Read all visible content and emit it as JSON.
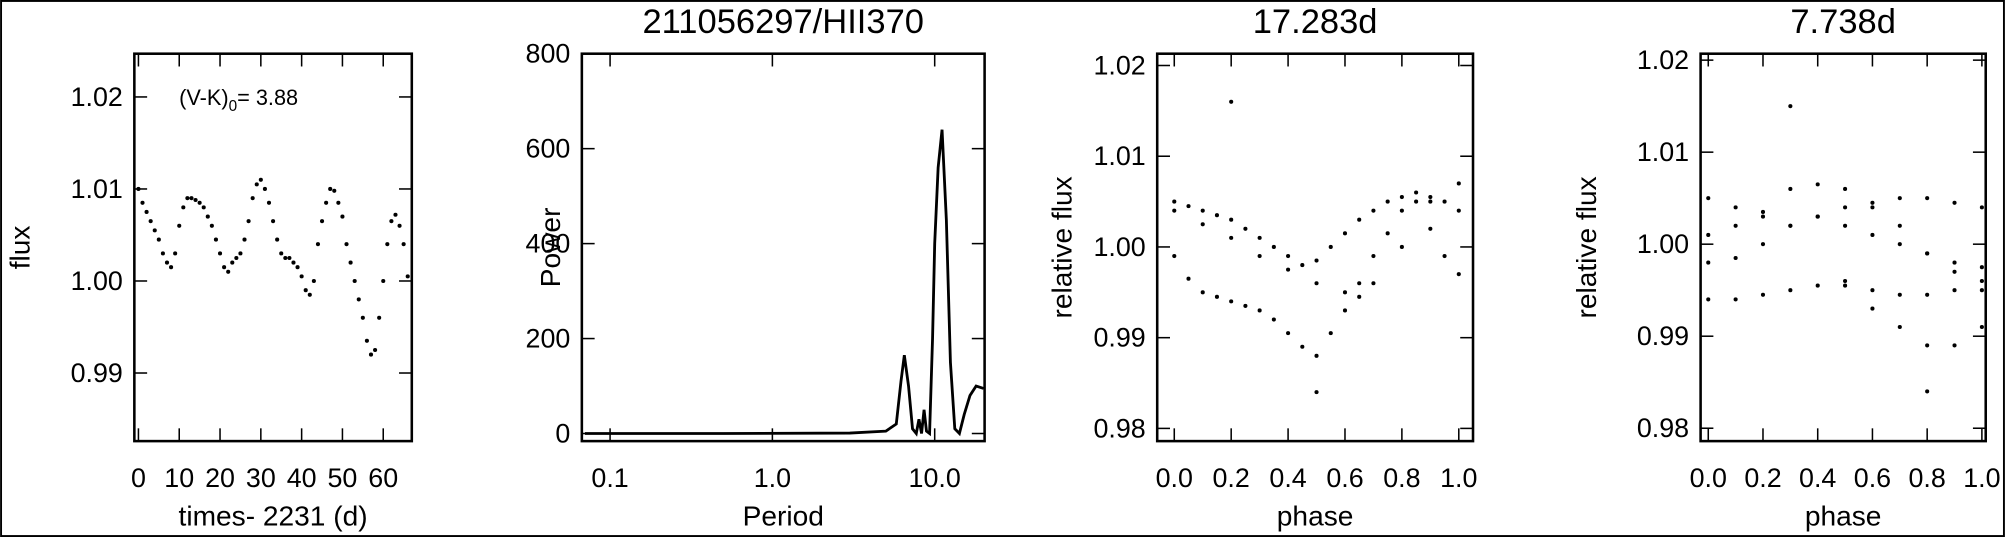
{
  "chart_data": [
    {
      "type": "scatter",
      "xlabel": "times- 2231 (d)",
      "ylabel": "flux",
      "annotation": {
        "text": "(V-K)",
        "sub": "0",
        "rest": "= 3.88"
      },
      "color": "#000000",
      "xlog": false,
      "xlim": [
        -1,
        67
      ],
      "ylim": [
        0.9826,
        1.0247
      ],
      "xticks": [
        0,
        10,
        20,
        30,
        40,
        50,
        60
      ],
      "yticks": [
        0.99,
        {
          "value": 1,
          "label": "1.00"
        },
        1.01,
        1.02
      ],
      "x": [
        0,
        1,
        2,
        3,
        4,
        5,
        6,
        7,
        8,
        9,
        10,
        11,
        12,
        13,
        14,
        15,
        16,
        17,
        18,
        19,
        20,
        21,
        22,
        23,
        24,
        25,
        26,
        27,
        28,
        29,
        30,
        31,
        32,
        33,
        34,
        35,
        36,
        37,
        38,
        39,
        40,
        41,
        42,
        43,
        44,
        45,
        46,
        47,
        48,
        49,
        50,
        51,
        52,
        53,
        54,
        55,
        56,
        57,
        58,
        59,
        60,
        61,
        62,
        63,
        64,
        65,
        66
      ],
      "y": [
        1.01,
        1.0085,
        1.0075,
        1.0065,
        1.0055,
        1.0045,
        1.003,
        1.002,
        1.0015,
        1.003,
        1.006,
        1.008,
        1.009,
        1.009,
        1.0088,
        1.0085,
        1.008,
        1.007,
        1.006,
        1.0045,
        1.003,
        1.0015,
        1.001,
        1.002,
        1.0025,
        1.003,
        1.0045,
        1.0065,
        1.009,
        1.0105,
        1.011,
        1.01,
        1.0085,
        1.0065,
        1.0045,
        1.003,
        1.0025,
        1.0025,
        1.002,
        1.0015,
        1.0005,
        0.999,
        0.9985,
        1.0,
        1.004,
        1.0065,
        1.0085,
        1.01,
        1.0098,
        1.0085,
        1.007,
        1.004,
        1.002,
        1.0,
        0.998,
        0.996,
        0.9935,
        0.992,
        0.9925,
        0.996,
        1.0,
        1.004,
        1.0065,
        1.0072,
        1.006,
        1.004,
        1.0005
      ]
    },
    {
      "type": "line",
      "title": "211056297/HII370",
      "xlabel": "Period",
      "ylabel": "Power",
      "color": "#000000",
      "xlog": true,
      "xlim": [
        0.067,
        20.3
      ],
      "ylim": [
        -16,
        800
      ],
      "xticks": [
        0.1,
        {
          "value": 1,
          "label": "1.0"
        },
        {
          "value": 10,
          "label": "10.0"
        }
      ],
      "yticks": [
        0,
        200,
        400,
        600,
        800
      ],
      "x": [
        0.07,
        0.5,
        3,
        5,
        5.8,
        6.2,
        6.5,
        6.9,
        7.3,
        7.7,
        8.0,
        8.3,
        8.6,
        8.9,
        9.3,
        9.7,
        10.0,
        10.5,
        11.1,
        11.8,
        12.5,
        13.3,
        14.2,
        15.2,
        16.5,
        18.0,
        20.0
      ],
      "y": [
        0,
        0,
        1,
        5,
        20,
        110,
        165,
        100,
        10,
        0,
        30,
        0,
        50,
        5,
        0,
        200,
        400,
        560,
        640,
        450,
        150,
        10,
        0,
        40,
        80,
        100,
        95
      ]
    },
    {
      "type": "scatter",
      "title": "17.283d",
      "xlabel": "phase",
      "ylabel": "relative flux",
      "color": "#000000",
      "xlog": false,
      "xlim": [
        -0.06,
        1.05
      ],
      "ylim": [
        0.9786,
        1.0213
      ],
      "xticks": [
        {
          "value": 0,
          "label": "0.0"
        },
        0.2,
        0.4,
        0.6,
        0.8,
        {
          "value": 1,
          "label": "1.0"
        }
      ],
      "yticks": [
        0.98,
        0.99,
        {
          "value": 1,
          "label": "1.00"
        },
        1.01,
        1.02
      ],
      "x": [
        0,
        0.05,
        0.1,
        0.15,
        0.2,
        0.25,
        0.3,
        0.35,
        0.4,
        0.45,
        0.5,
        0.55,
        0.6,
        0.65,
        0.7,
        0.75,
        0.8,
        0.85,
        0.9,
        0.95,
        1.0,
        0,
        0.05,
        0.1,
        0.15,
        0.2,
        0.25,
        0.3,
        0.35,
        0.4,
        0.45,
        0.5,
        0.55,
        0.6,
        0.65,
        0.7,
        0.75,
        0.8,
        0.85,
        0.9,
        0.95,
        1.0,
        0,
        0.1,
        0.2,
        0.3,
        0.4,
        0.5,
        0.6,
        0.65,
        0.7,
        0.8,
        0.9,
        1.0,
        0.2,
        0.5
      ],
      "y": [
        1.005,
        1.0045,
        1.004,
        1.0035,
        1.003,
        1.002,
        1.001,
        1.0,
        0.999,
        0.998,
        0.9985,
        1.0,
        1.0015,
        1.003,
        1.004,
        1.005,
        1.0055,
        1.006,
        1.0055,
        1.005,
        1.004,
        0.999,
        0.9965,
        0.995,
        0.9945,
        0.994,
        0.9935,
        0.993,
        0.992,
        0.9905,
        0.989,
        0.988,
        0.9905,
        0.993,
        0.996,
        0.999,
        1.0015,
        1.004,
        1.005,
        1.002,
        0.999,
        0.997,
        1.004,
        1.0025,
        1.001,
        0.999,
        0.9975,
        0.996,
        0.995,
        0.9945,
        0.996,
        1.0,
        1.005,
        1.007,
        1.016,
        0.984
      ]
    },
    {
      "type": "scatter",
      "title": "7.738d",
      "xlabel": "phase",
      "ylabel": "relative flux",
      "color": "#000000",
      "xlog": false,
      "xlim": [
        -0.028,
        1.014
      ],
      "ylim": [
        0.9786,
        1.0207
      ],
      "xticks": [
        {
          "value": 0,
          "label": "0.0"
        },
        0.2,
        0.4,
        0.6,
        0.8,
        {
          "value": 1,
          "label": "1.0"
        }
      ],
      "yticks": [
        0.98,
        0.99,
        {
          "value": 1,
          "label": "1.00"
        },
        1.01,
        1.02
      ],
      "x": [
        0,
        0.1,
        0.2,
        0.3,
        0.4,
        0.5,
        0.6,
        0.7,
        0.8,
        0.9,
        1.0,
        0,
        0.1,
        0.2,
        0.3,
        0.4,
        0.5,
        0.6,
        0.7,
        0.8,
        0.9,
        1.0,
        0,
        0.1,
        0.2,
        0.3,
        0.4,
        0.5,
        0.6,
        0.7,
        0.8,
        0.9,
        1.0,
        0,
        0.1,
        0.2,
        0.3,
        0.4,
        0.5,
        0.6,
        0.7,
        0.8,
        0.9,
        1.0,
        0.5,
        0.6,
        0.7,
        0.8,
        0.9,
        1.0,
        0.3,
        0.8
      ],
      "y": [
        1.005,
        1.004,
        1.003,
        1.002,
        1.003,
        1.004,
        1.0045,
        1.005,
        1.005,
        1.0045,
        1.004,
        0.998,
        0.9985,
        1.0,
        1.002,
        1.003,
        1.002,
        1.001,
        1.0,
        0.999,
        0.998,
        0.9975,
        0.994,
        0.994,
        0.9945,
        0.995,
        0.9955,
        0.9955,
        0.995,
        0.9945,
        0.9945,
        0.995,
        0.995,
        1.001,
        1.002,
        1.0035,
        1.006,
        1.0065,
        1.006,
        1.004,
        1.002,
        0.999,
        0.997,
        0.996,
        0.996,
        0.993,
        0.991,
        0.989,
        0.989,
        0.991,
        1.015,
        0.984
      ]
    }
  ]
}
